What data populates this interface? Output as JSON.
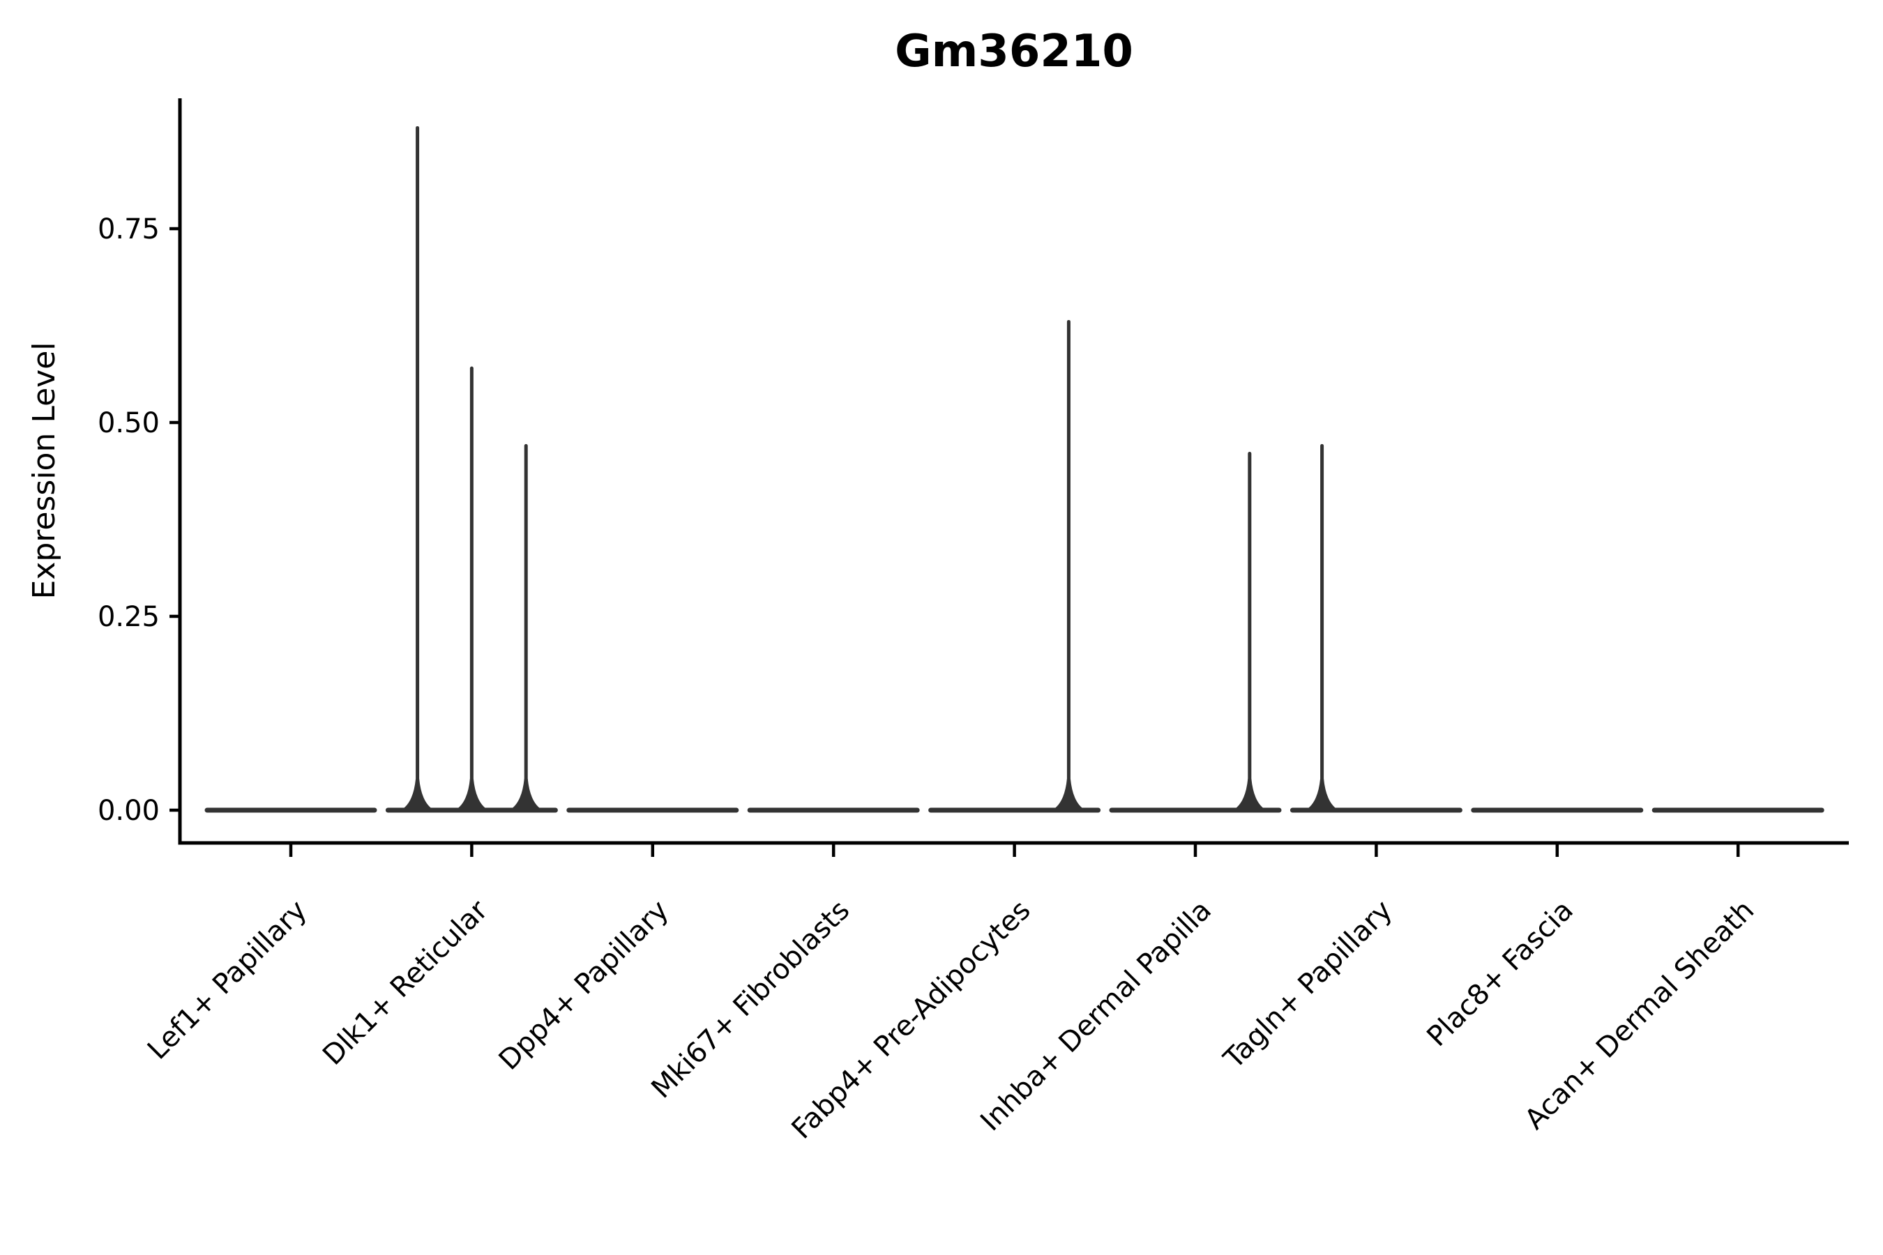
{
  "figure": {
    "title": "Gm36210",
    "y_axis_label": "Expression Level"
  },
  "chart_data": {
    "type": "violin",
    "title": "Gm36210",
    "xlabel": "",
    "ylabel": "Expression Level",
    "legend": "none",
    "grid": false,
    "background_color": "#ffffff",
    "ylim": [
      -0.04,
      0.92
    ],
    "ytick_values": [
      0.0,
      0.25,
      0.5,
      0.75
    ],
    "ytick_labels": [
      "0.00",
      "0.25",
      "0.50",
      "0.75"
    ],
    "categories": [
      "Lef1+ Papillary",
      "Dlk1+ Reticular",
      "Dpp4+ Papillary",
      "Mki67+ Fibroblasts",
      "Fabp4+ Pre-Adipocytes",
      "Inhba+ Dermal Papilla",
      "Tagln+ Papillary",
      "Plac8+ Fascia",
      "Acan+ Dermal Sheath"
    ],
    "xtick_label_rotation_deg": 45,
    "series": [
      {
        "category": "Lef1+ Papillary",
        "baseline_value": 0.0,
        "spikes": []
      },
      {
        "category": "Dlk1+ Reticular",
        "baseline_value": 0.0,
        "spikes": [
          {
            "offset": -0.3,
            "value": 0.88
          },
          {
            "offset": 0.0,
            "value": 0.57
          },
          {
            "offset": 0.3,
            "value": 0.47
          }
        ]
      },
      {
        "category": "Dpp4+ Papillary",
        "baseline_value": 0.0,
        "spikes": []
      },
      {
        "category": "Mki67+ Fibroblasts",
        "baseline_value": 0.0,
        "spikes": []
      },
      {
        "category": "Fabp4+ Pre-Adipocytes",
        "baseline_value": 0.0,
        "spikes": [
          {
            "offset": 0.3,
            "value": 0.63
          }
        ]
      },
      {
        "category": "Inhba+ Dermal Papilla",
        "baseline_value": 0.0,
        "spikes": [
          {
            "offset": 0.3,
            "value": 0.46
          }
        ]
      },
      {
        "category": "Tagln+ Papillary",
        "baseline_value": 0.0,
        "spikes": [
          {
            "offset": -0.3,
            "value": 0.47
          }
        ]
      },
      {
        "category": "Plac8+ Fascia",
        "baseline_value": 0.0,
        "spikes": []
      },
      {
        "category": "Acan+ Dermal Sheath",
        "baseline_value": 0.0,
        "spikes": []
      }
    ],
    "colors": {
      "violin": "#333333",
      "axis": "#000000",
      "text": "#000000"
    }
  }
}
